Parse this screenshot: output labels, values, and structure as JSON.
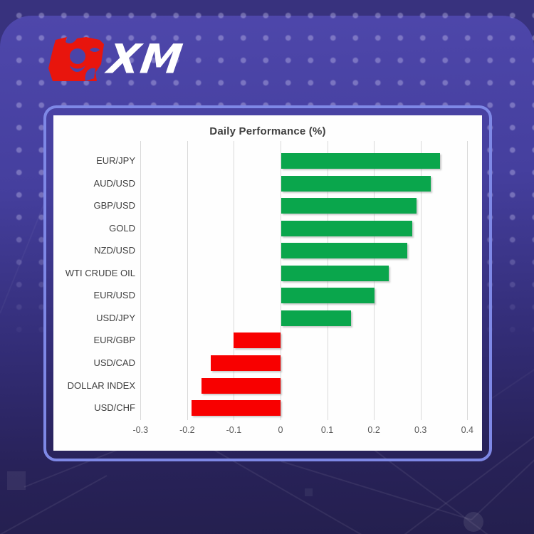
{
  "brand": {
    "logo_text": "XM",
    "bull_color": "#e8150d"
  },
  "theme": {
    "background_outer": "#38327e",
    "background_top": "#4e47ab",
    "background_bottom": "#241f4e",
    "panel_border": "#7e88e6",
    "panel_bg": "#fefefe",
    "gridline_color": "#d9d9d9",
    "title_color": "#3f3f3f",
    "label_color": "#404040",
    "tick_color": "#595959"
  },
  "chart_data": {
    "type": "bar",
    "orientation": "horizontal",
    "title": "Daily Performance (%)",
    "categories": [
      "EUR/JPY",
      "AUD/USD",
      "GBP/USD",
      "GOLD",
      "NZD/USD",
      "WTI CRUDE OIL",
      "EUR/USD",
      "USD/JPY",
      "EUR/GBP",
      "USD/CAD",
      "DOLLAR INDEX",
      "USD/CHF"
    ],
    "values": [
      0.34,
      0.32,
      0.29,
      0.28,
      0.27,
      0.23,
      0.2,
      0.15,
      -0.1,
      -0.15,
      -0.17,
      -0.19
    ],
    "x_ticks": [
      "-0.3",
      "-0.2",
      "-0.1",
      "0",
      "0.1",
      "0.2",
      "0.3",
      "0.4"
    ],
    "xlim": [
      -0.3,
      0.4
    ],
    "grid": true,
    "legend": false,
    "positive_color": "#0aa64c",
    "negative_color": "#f80000"
  }
}
